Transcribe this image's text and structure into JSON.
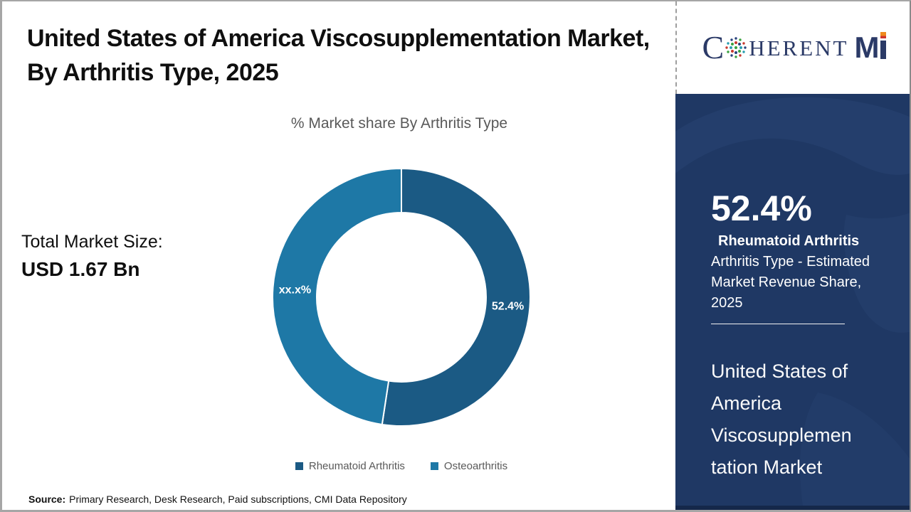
{
  "header": {
    "title": "United States of America Viscosupplementation Market, By Arthritis Type, 2025"
  },
  "logo": {
    "part_c": "C",
    "part_oherent": "HERENT",
    "part_m": "M",
    "globe_icon": "globe-dots-icon",
    "navy": "#2b3a67",
    "orange": "#ef8a1e"
  },
  "market_size": {
    "label": "Total Market Size:",
    "value": "USD 1.67 Bn"
  },
  "chart_data": {
    "type": "pie",
    "variant": "donut",
    "title": "% Market share By Arthritis Type",
    "series": [
      {
        "name": "Rheumatoid Arthritis",
        "value": 52.4,
        "label": "52.4%",
        "color": "#1b5a84"
      },
      {
        "name": "Osteoarthritis",
        "value": 47.6,
        "label": "xx.x%",
        "color": "#1e78a6"
      }
    ],
    "start_angle_deg": 0,
    "direction": "clockwise",
    "legend_position": "bottom",
    "slice_gap_color": "#ffffff"
  },
  "sidebar": {
    "stat_value": "52.4%",
    "stat_name": "Rheumatoid Arthritis",
    "stat_desc": "Arthritis Type - Estimated Market Revenue Share, 2025",
    "market_name": "United States of America Viscosupplementation Market",
    "background": "#1f3864"
  },
  "source": {
    "label": "Source:",
    "text": "Primary Research, Desk Research, Paid subscriptions, CMI Data Repository"
  }
}
